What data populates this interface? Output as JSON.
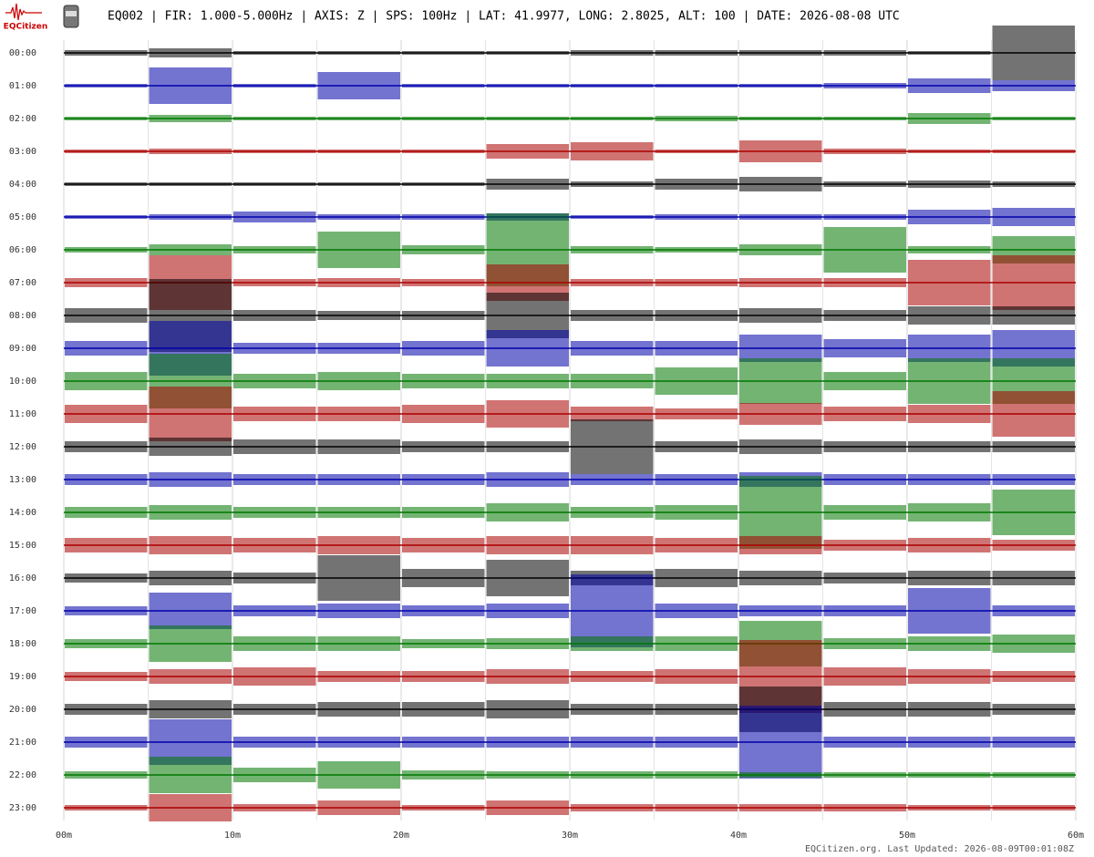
{
  "logo": "EQCitizen",
  "footer": "EQCitizen.org. Last Updated: 2026-08-09T00:01:08Z",
  "chart_data": {
    "type": "helicorder",
    "title": "EQ002 | FIR: 1.000-5.000Hz | AXIS: Z | SPS: 100Hz | LAT: 41.9977, LONG: 2.8025, ALT: 100 | DATE: 2026-08-08 UTC",
    "xlim": [
      0,
      60
    ],
    "xticks": [
      {
        "value": 0,
        "label": "00m"
      },
      {
        "value": 10,
        "label": "10m"
      },
      {
        "value": 20,
        "label": "20m"
      },
      {
        "value": 30,
        "label": "30m"
      },
      {
        "value": 40,
        "label": "40m"
      },
      {
        "value": 50,
        "label": "50m"
      },
      {
        "value": 60,
        "label": "60m"
      }
    ],
    "xminor": [
      5,
      15,
      25,
      35,
      45,
      55
    ],
    "grid": true,
    "bins": [
      0,
      5,
      10,
      15,
      20,
      25,
      30,
      35,
      40,
      45,
      50,
      55,
      60
    ],
    "rows": [
      {
        "label": "00:00",
        "color": "#000000",
        "values": [
          3,
          5,
          2,
          2,
          2,
          2,
          3,
          3,
          3,
          3,
          2,
          30
        ]
      },
      {
        "label": "01:00",
        "color": "#0000aa",
        "values": [
          2,
          20,
          2,
          15,
          2,
          2,
          2,
          2,
          2,
          3,
          8,
          6
        ]
      },
      {
        "label": "02:00",
        "color": "#007700",
        "values": [
          2,
          4,
          2,
          2,
          2,
          2,
          2,
          3,
          2,
          2,
          6,
          2
        ]
      },
      {
        "label": "03:00",
        "color": "#aa0000",
        "values": [
          2,
          3,
          2,
          2,
          2,
          8,
          10,
          2,
          12,
          3,
          2,
          2
        ]
      },
      {
        "label": "04:00",
        "color": "#000000",
        "values": [
          2,
          2,
          2,
          2,
          2,
          6,
          3,
          6,
          8,
          3,
          4,
          3
        ]
      },
      {
        "label": "05:00",
        "color": "#0000aa",
        "values": [
          2,
          3,
          6,
          3,
          3,
          4,
          2,
          3,
          3,
          3,
          8,
          10
        ]
      },
      {
        "label": "06:00",
        "color": "#007700",
        "values": [
          3,
          6,
          4,
          20,
          5,
          40,
          4,
          3,
          6,
          25,
          4,
          15
        ]
      },
      {
        "label": "07:00",
        "color": "#aa0000",
        "values": [
          5,
          30,
          4,
          5,
          4,
          20,
          4,
          4,
          5,
          5,
          25,
          30
        ]
      },
      {
        "label": "08:00",
        "color": "#000000",
        "values": [
          8,
          40,
          6,
          5,
          5,
          25,
          6,
          6,
          8,
          6,
          10,
          10
        ]
      },
      {
        "label": "09:00",
        "color": "#0000aa",
        "values": [
          8,
          30,
          6,
          6,
          8,
          20,
          8,
          8,
          15,
          10,
          15,
          20
        ]
      },
      {
        "label": "10:00",
        "color": "#007700",
        "values": [
          10,
          30,
          8,
          10,
          8,
          8,
          8,
          15,
          25,
          10,
          25,
          25
        ]
      },
      {
        "label": "11:00",
        "color": "#aa0000",
        "values": [
          10,
          30,
          8,
          8,
          10,
          15,
          8,
          6,
          12,
          8,
          10,
          25
        ]
      },
      {
        "label": "12:00",
        "color": "#000000",
        "values": [
          6,
          10,
          8,
          8,
          6,
          6,
          30,
          6,
          8,
          6,
          6,
          6
        ]
      },
      {
        "label": "13:00",
        "color": "#0000aa",
        "values": [
          6,
          8,
          6,
          6,
          6,
          8,
          6,
          6,
          8,
          6,
          6,
          6
        ]
      },
      {
        "label": "14:00",
        "color": "#007700",
        "values": [
          6,
          8,
          6,
          6,
          6,
          10,
          6,
          8,
          40,
          8,
          10,
          25
        ]
      },
      {
        "label": "15:00",
        "color": "#aa0000",
        "values": [
          8,
          10,
          8,
          10,
          8,
          10,
          10,
          8,
          10,
          6,
          8,
          6
        ]
      },
      {
        "label": "16:00",
        "color": "#000000",
        "values": [
          5,
          8,
          6,
          25,
          10,
          20,
          8,
          10,
          8,
          6,
          8,
          8
        ]
      },
      {
        "label": "17:00",
        "color": "#0000aa",
        "values": [
          5,
          20,
          6,
          8,
          6,
          8,
          40,
          8,
          6,
          6,
          25,
          6
        ]
      },
      {
        "label": "18:00",
        "color": "#007700",
        "values": [
          5,
          20,
          8,
          8,
          5,
          6,
          8,
          8,
          25,
          6,
          8,
          10
        ]
      },
      {
        "label": "19:00",
        "color": "#aa0000",
        "values": [
          5,
          8,
          10,
          6,
          6,
          8,
          6,
          8,
          40,
          10,
          8,
          6
        ]
      },
      {
        "label": "20:00",
        "color": "#000000",
        "values": [
          6,
          10,
          6,
          8,
          8,
          10,
          6,
          6,
          25,
          8,
          8,
          6
        ]
      },
      {
        "label": "21:00",
        "color": "#0000aa",
        "values": [
          6,
          25,
          6,
          6,
          6,
          6,
          6,
          6,
          40,
          6,
          6,
          6
        ]
      },
      {
        "label": "22:00",
        "color": "#007700",
        "values": [
          4,
          20,
          8,
          15,
          5,
          4,
          4,
          4,
          3,
          3,
          3,
          3
        ]
      },
      {
        "label": "23:00",
        "color": "#aa0000",
        "values": [
          3,
          15,
          4,
          8,
          3,
          8,
          4,
          4,
          4,
          4,
          3,
          3
        ]
      }
    ]
  }
}
